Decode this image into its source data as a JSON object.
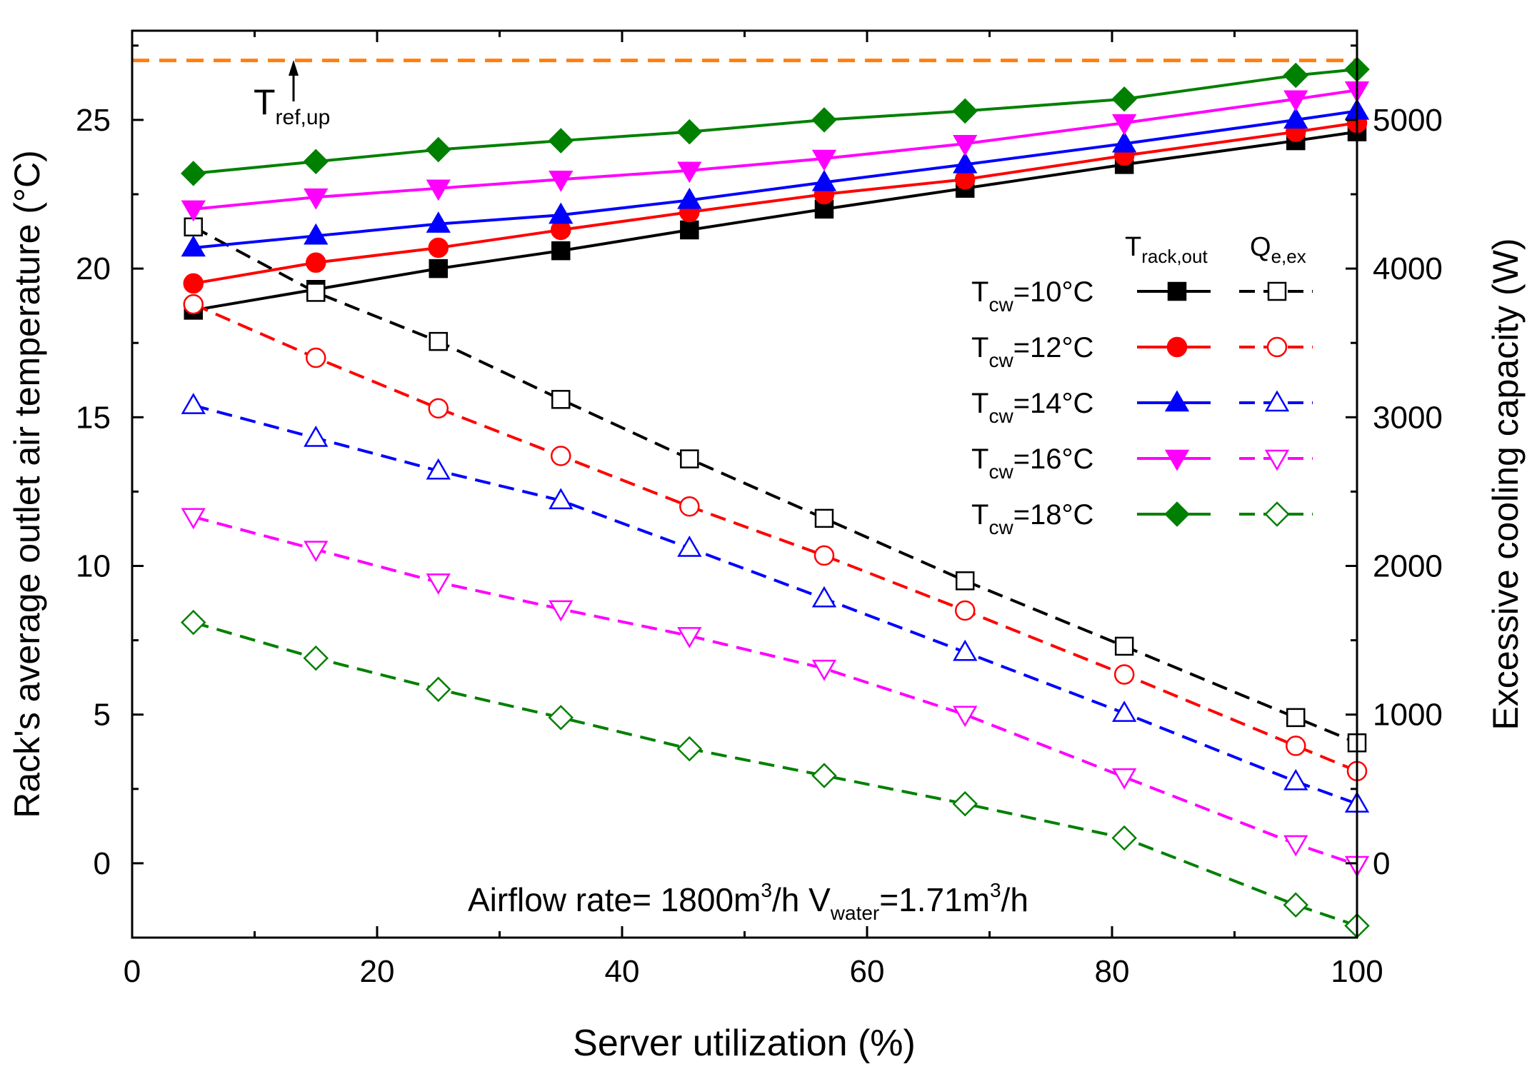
{
  "chart_data": {
    "type": "line",
    "x_label": "Server utilization (%)",
    "y_label": "Rack's average outlet air temperature (°C)",
    "y2_label": "Excessive cooling capacity (W)",
    "xlim": [
      0,
      100
    ],
    "ylim": [
      -2.5,
      28
    ],
    "y2lim": [
      -500,
      5600
    ],
    "x_ticks": [
      0,
      20,
      40,
      60,
      80,
      100
    ],
    "y_ticks": [
      0,
      5,
      10,
      15,
      20,
      25
    ],
    "y2_ticks": [
      0,
      1000,
      2000,
      3000,
      4000,
      5000
    ],
    "x": [
      5,
      15,
      25,
      35,
      45.5,
      56.5,
      68,
      81,
      95,
      100
    ],
    "reference_line": {
      "y": 27,
      "label_main": "T",
      "label_sub": "ref,up",
      "color": "#ff7f0e"
    },
    "annotation": {
      "part1": "Airflow rate= 1800m",
      "sup1": "3",
      "part2": "/h  V",
      "sub": "water",
      "part3": "=1.71m",
      "sup2": "3",
      "part4": "/h"
    },
    "legend": {
      "position": "center-right",
      "col1_main": "T",
      "col1_sub": "rack,out",
      "col2_main": "Q",
      "col2_sub": "e,ex",
      "row_prefix": "T",
      "row_sub": "cw"
    },
    "series": [
      {
        "name": "=10°C",
        "color": "#000000",
        "marker": "square",
        "rack_outlet_temp_C": [
          18.6,
          19.3,
          20.0,
          20.6,
          21.3,
          22.0,
          22.7,
          23.5,
          24.3,
          24.6
        ],
        "excess_cooling_W": [
          4280,
          3840,
          3510,
          3120,
          2720,
          2320,
          1900,
          1460,
          980,
          810
        ]
      },
      {
        "name": "=12°C",
        "color": "#ff0000",
        "marker": "circle",
        "rack_outlet_temp_C": [
          19.5,
          20.2,
          20.7,
          21.3,
          21.9,
          22.5,
          23.0,
          23.8,
          24.6,
          24.9
        ],
        "excess_cooling_W": [
          3760,
          3400,
          3060,
          2740,
          2400,
          2070,
          1700,
          1270,
          790,
          620
        ]
      },
      {
        "name": "=14°C",
        "color": "#0000ff",
        "marker": "triangle-up",
        "rack_outlet_temp_C": [
          20.7,
          21.1,
          21.5,
          21.8,
          22.3,
          22.9,
          23.5,
          24.2,
          25.0,
          25.3
        ],
        "excess_cooling_W": [
          3080,
          2860,
          2640,
          2440,
          2120,
          1780,
          1420,
          1010,
          550,
          400
        ]
      },
      {
        "name": "=16°C",
        "color": "#ff00ff",
        "marker": "triangle-down",
        "rack_outlet_temp_C": [
          22.0,
          22.4,
          22.7,
          23.0,
          23.3,
          23.7,
          24.2,
          24.9,
          25.7,
          26.0
        ],
        "excess_cooling_W": [
          2330,
          2110,
          1890,
          1710,
          1530,
          1310,
          1000,
          580,
          130,
          -10
        ]
      },
      {
        "name": "=18°C",
        "color": "#008000",
        "marker": "diamond",
        "rack_outlet_temp_C": [
          23.2,
          23.6,
          24.0,
          24.3,
          24.6,
          25.0,
          25.3,
          25.7,
          26.5,
          26.7
        ],
        "excess_cooling_W": [
          1620,
          1380,
          1170,
          980,
          770,
          590,
          400,
          170,
          -280,
          -420
        ]
      }
    ]
  }
}
